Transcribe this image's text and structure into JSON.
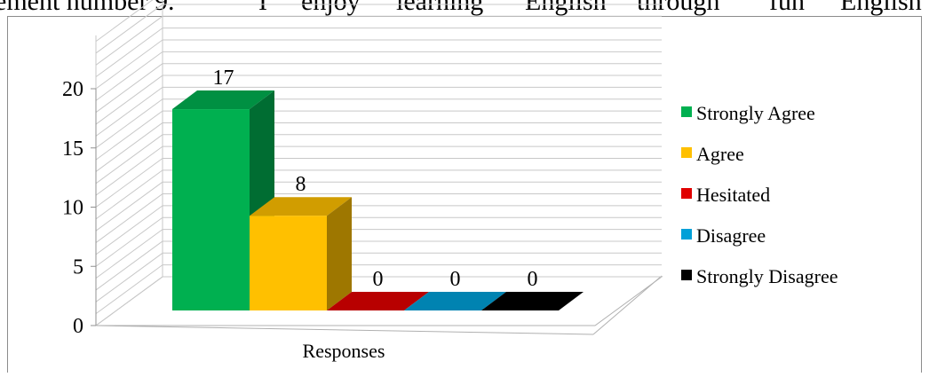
{
  "header_text": {
    "words": [
      "ement number 9.",
      "I",
      "enjoy",
      "learning",
      "English",
      "through",
      "fun",
      "English"
    ]
  },
  "chart_data": {
    "type": "bar",
    "title": "",
    "xlabel": "Responses",
    "ylabel": "",
    "ylim": [
      0,
      20
    ],
    "yticks": [
      0,
      5,
      10,
      15,
      20
    ],
    "grid": true,
    "legend_position": "right",
    "categories": [
      "Responses"
    ],
    "series": [
      {
        "name": "Strongly Agree",
        "values": [
          17
        ],
        "color": "#00b050"
      },
      {
        "name": "Agree",
        "values": [
          8
        ],
        "color": "#ffc000"
      },
      {
        "name": "Hesitated",
        "values": [
          0
        ],
        "color": "#e00000"
      },
      {
        "name": "Disagree",
        "values": [
          0
        ],
        "color": "#00a0d8"
      },
      {
        "name": "Strongly Disagree",
        "values": [
          0
        ],
        "color": "#000000"
      }
    ]
  }
}
